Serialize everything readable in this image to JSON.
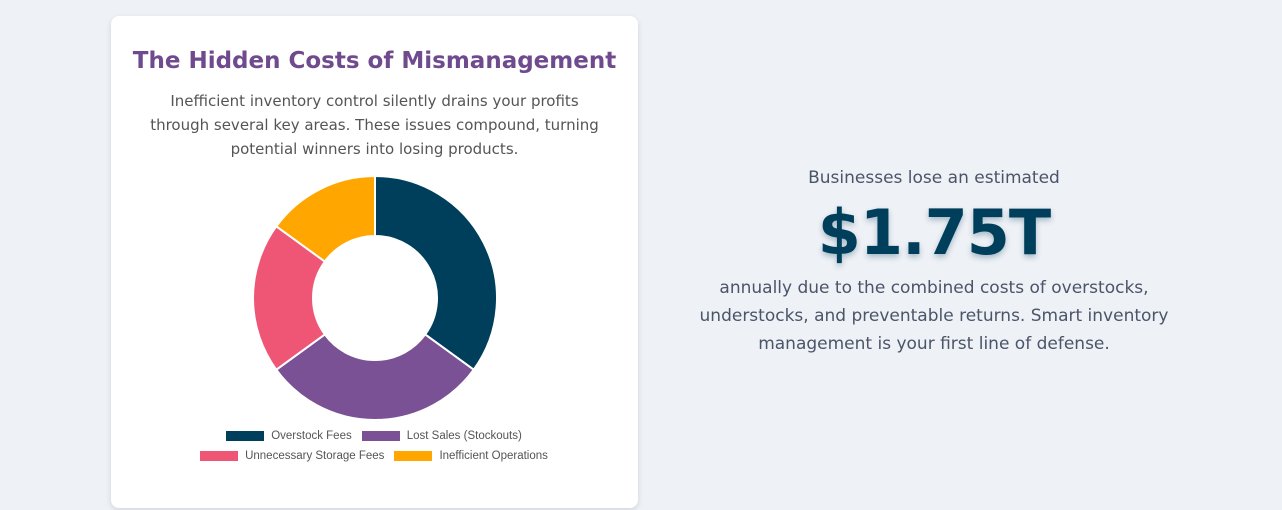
{
  "card": {
    "title": "The Hidden Costs of Mismanagement",
    "description": "Inefficient inventory control silently drains your profits through several key areas. These issues compound, turning potential winners into losing products.",
    "chart_data": {
      "type": "doughnut",
      "categories": [
        "Overstock Fees",
        "Lost Sales (Stockouts)",
        "Unnecessary Storage Fees",
        "Inefficient Operations"
      ],
      "values": [
        35,
        30,
        20,
        15
      ],
      "colors": [
        "#003f5c",
        "#7a5195",
        "#ef5675",
        "#ffa600"
      ]
    }
  },
  "stat": {
    "intro": "Businesses lose an estimated",
    "amount": "$1.75T",
    "text": "annually due to the combined costs of overstocks, understocks, and preventable returns. Smart inventory management is your first line of defense."
  }
}
